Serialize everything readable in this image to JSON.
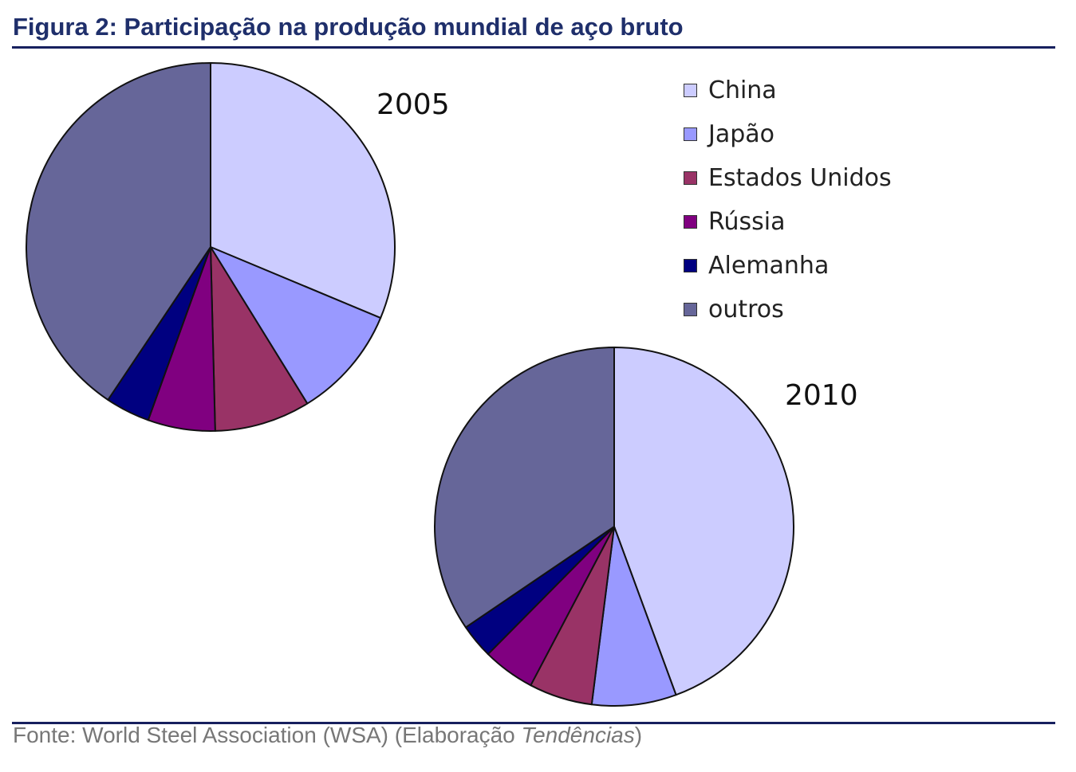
{
  "figure": {
    "title": "Figura 2: Participação na produção mundial de aço bruto",
    "source_prefix": "Fonte: World Steel Association (WSA) (Elaboração ",
    "source_italic": "Tendências",
    "source_suffix": ")"
  },
  "chart_data": {
    "type": "pie",
    "categories": [
      "China",
      "Japão",
      "Estados Unidos",
      "Rússia",
      "Alemanha",
      "outros"
    ],
    "colors": [
      "#ccccff",
      "#9999ff",
      "#993366",
      "#800080",
      "#000080",
      "#666699"
    ],
    "legend_position": "top-right",
    "pies": [
      {
        "label": "2005",
        "values": [
          31.3,
          9.9,
          8.4,
          5.9,
          3.9,
          40.6
        ]
      },
      {
        "label": "2010",
        "values": [
          44.4,
          7.6,
          5.7,
          4.7,
          3.1,
          34.5
        ]
      }
    ]
  }
}
